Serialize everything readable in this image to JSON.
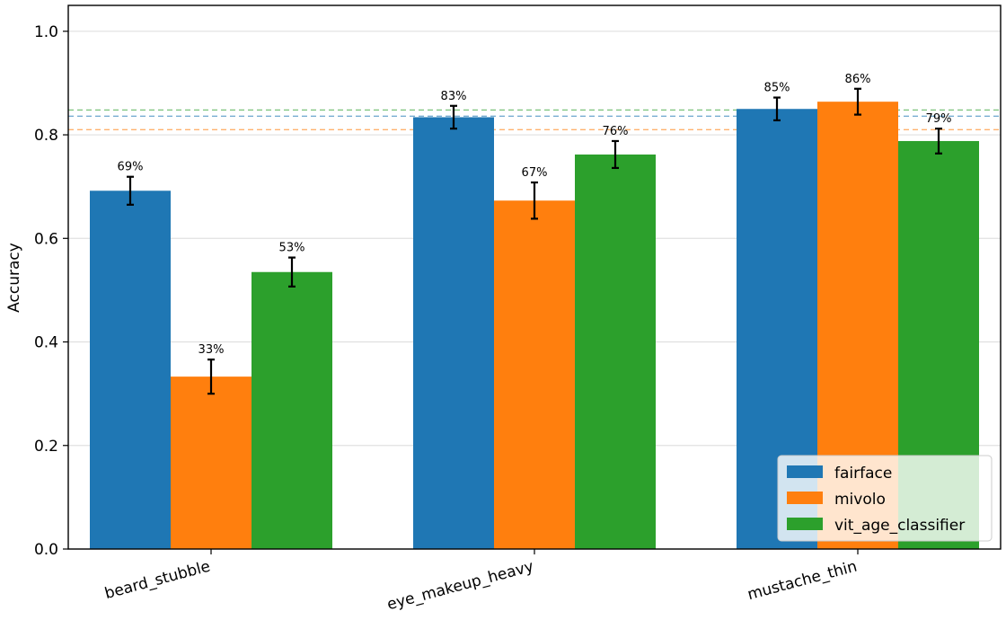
{
  "chart_data": {
    "type": "bar",
    "categories": [
      "beard_stubble",
      "eye_makeup_heavy",
      "mustache_thin"
    ],
    "series": [
      {
        "name": "fairface",
        "color": "#1f77b4",
        "values": [
          0.692,
          0.834,
          0.85
        ],
        "errors": [
          0.027,
          0.022,
          0.022
        ],
        "labels": [
          "69%",
          "83%",
          "85%"
        ]
      },
      {
        "name": "mivolo",
        "color": "#ff7f0e",
        "values": [
          0.333,
          0.673,
          0.864
        ],
        "errors": [
          0.033,
          0.035,
          0.025
        ],
        "labels": [
          "33%",
          "67%",
          "86%"
        ]
      },
      {
        "name": "vit_age_classifier",
        "color": "#2ca02c",
        "values": [
          0.535,
          0.762,
          0.788
        ],
        "errors": [
          0.028,
          0.026,
          0.024
        ],
        "labels": [
          "53%",
          "76%",
          "79%"
        ]
      }
    ],
    "reference_lines": [
      {
        "series": "fairface",
        "value": 0.836,
        "color": "#1f77b4"
      },
      {
        "series": "mivolo",
        "value": 0.81,
        "color": "#ff7f0e"
      },
      {
        "series": "vit_age_classifier",
        "value": 0.848,
        "color": "#2ca02c"
      }
    ],
    "title": "",
    "xlabel": "",
    "ylabel": "Accuracy",
    "ylim": [
      0.0,
      1.05
    ],
    "yticks": [
      0.0,
      0.2,
      0.4,
      0.6,
      0.8,
      1.0
    ],
    "ytick_labels": [
      "0.0",
      "0.2",
      "0.4",
      "0.6",
      "0.8",
      "1.0"
    ],
    "grid": "y",
    "legend_position": "lower-right"
  }
}
